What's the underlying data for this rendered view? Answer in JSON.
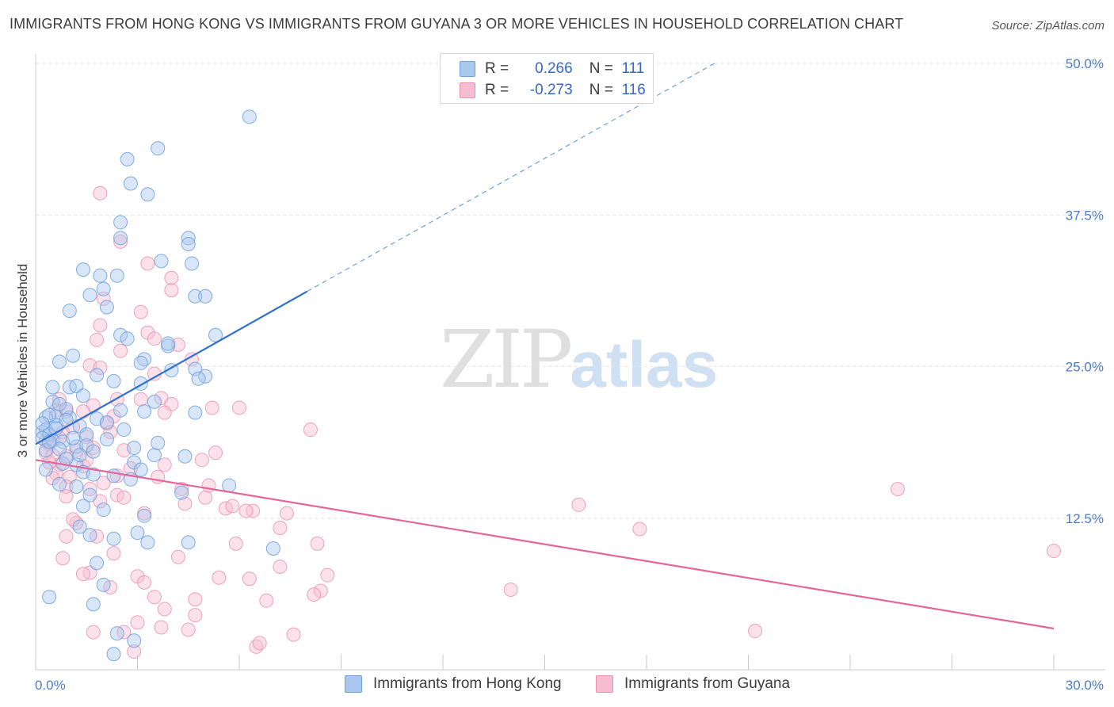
{
  "header": {
    "title": "IMMIGRANTS FROM HONG KONG VS IMMIGRANTS FROM GUYANA 3 OR MORE VEHICLES IN HOUSEHOLD CORRELATION CHART",
    "source": "Source: ZipAtlas.com"
  },
  "watermark": {
    "zip": "ZIP",
    "atlas": "atlas"
  },
  "legend": {
    "hk": {
      "r_label": "R =",
      "r_value": "0.266",
      "n_label": "N =",
      "n_value": "111"
    },
    "gy": {
      "r_label": "R =",
      "r_value": "-0.273",
      "n_label": "N =",
      "n_value": "116"
    }
  },
  "colors": {
    "hk_fill": "#a9c8ee",
    "hk_stroke": "#6d9fdd",
    "hk_line": "#2f6fcf",
    "gy_fill": "#f6bcd0",
    "gy_stroke": "#ea8fae",
    "gy_line": "#e4659a",
    "grid": "#e6e6e6",
    "axis_text": "#4a7cc9"
  },
  "chart_data": {
    "type": "scatter",
    "title": "IMMIGRANTS FROM HONG KONG VS IMMIGRANTS FROM GUYANA 3 OR MORE VEHICLES IN HOUSEHOLD CORRELATION CHART",
    "xlabel": "",
    "ylabel": "3 or more Vehicles in Household",
    "xlim": [
      0,
      30
    ],
    "ylim": [
      0,
      50
    ],
    "x_tick_labels": [
      "0.0%",
      "30.0%"
    ],
    "y_ticks": [
      12.5,
      25.0,
      37.5,
      50.0
    ],
    "y_tick_labels": [
      "12.5%",
      "25.0%",
      "37.5%",
      "50.0%"
    ],
    "grid": true,
    "legend_position": "top-center",
    "series": [
      {
        "name": "Immigrants from Hong Kong",
        "r": 0.266,
        "n": 111,
        "trend": {
          "x0": 0.0,
          "y0": 18.6,
          "x1": 8.0,
          "y1": 31.2,
          "dashed_to_x": 20.0,
          "dashed_to_y": 50.0
        },
        "points": [
          [
            6.3,
            45.6
          ],
          [
            3.6,
            43.0
          ],
          [
            2.7,
            42.1
          ],
          [
            2.8,
            40.1
          ],
          [
            3.3,
            39.2
          ],
          [
            2.5,
            36.9
          ],
          [
            2.5,
            35.6
          ],
          [
            4.5,
            35.6
          ],
          [
            4.5,
            35.1
          ],
          [
            3.7,
            33.7
          ],
          [
            4.6,
            33.5
          ],
          [
            1.4,
            33.0
          ],
          [
            2.4,
            32.5
          ],
          [
            1.9,
            32.5
          ],
          [
            2.0,
            31.4
          ],
          [
            1.6,
            30.9
          ],
          [
            4.7,
            30.8
          ],
          [
            5.0,
            30.8
          ],
          [
            2.1,
            29.9
          ],
          [
            1.0,
            29.6
          ],
          [
            2.5,
            27.6
          ],
          [
            2.7,
            27.3
          ],
          [
            5.3,
            27.6
          ],
          [
            3.9,
            26.7
          ],
          [
            3.9,
            26.9
          ],
          [
            1.1,
            25.9
          ],
          [
            0.7,
            25.4
          ],
          [
            3.2,
            25.6
          ],
          [
            3.1,
            25.3
          ],
          [
            4.0,
            24.7
          ],
          [
            4.7,
            24.8
          ],
          [
            5.0,
            24.2
          ],
          [
            4.8,
            24.0
          ],
          [
            1.8,
            24.3
          ],
          [
            2.3,
            23.8
          ],
          [
            3.1,
            23.6
          ],
          [
            0.5,
            23.3
          ],
          [
            1.0,
            23.3
          ],
          [
            1.2,
            23.4
          ],
          [
            1.4,
            22.6
          ],
          [
            3.5,
            22.1
          ],
          [
            4.7,
            21.2
          ],
          [
            2.5,
            21.4
          ],
          [
            3.2,
            21.3
          ],
          [
            0.6,
            20.9
          ],
          [
            1.0,
            20.8
          ],
          [
            0.3,
            20.8
          ],
          [
            1.8,
            20.7
          ],
          [
            2.1,
            20.4
          ],
          [
            1.3,
            20.1
          ],
          [
            0.6,
            20.2
          ],
          [
            0.3,
            19.8
          ],
          [
            0.2,
            19.6
          ],
          [
            0.4,
            19.4
          ],
          [
            0.2,
            19.1
          ],
          [
            0.5,
            18.9
          ],
          [
            0.8,
            18.8
          ],
          [
            1.2,
            18.4
          ],
          [
            1.5,
            18.5
          ],
          [
            0.3,
            18.1
          ],
          [
            0.7,
            18.2
          ],
          [
            1.7,
            18.0
          ],
          [
            3.5,
            17.7
          ],
          [
            2.9,
            17.1
          ],
          [
            0.8,
            17.0
          ],
          [
            1.2,
            16.9
          ],
          [
            0.3,
            16.5
          ],
          [
            1.4,
            16.3
          ],
          [
            1.7,
            16.1
          ],
          [
            2.3,
            16.0
          ],
          [
            2.8,
            15.7
          ],
          [
            0.7,
            15.3
          ],
          [
            1.2,
            15.1
          ],
          [
            1.6,
            14.4
          ],
          [
            5.7,
            15.2
          ],
          [
            4.3,
            14.6
          ],
          [
            1.4,
            13.5
          ],
          [
            2.0,
            13.2
          ],
          [
            3.2,
            12.7
          ],
          [
            1.3,
            11.8
          ],
          [
            3.0,
            11.3
          ],
          [
            1.6,
            11.1
          ],
          [
            2.3,
            10.8
          ],
          [
            3.3,
            10.5
          ],
          [
            4.5,
            10.5
          ],
          [
            7.0,
            10.0
          ],
          [
            1.8,
            8.8
          ],
          [
            2.0,
            7.0
          ],
          [
            0.4,
            6.0
          ],
          [
            1.7,
            5.4
          ],
          [
            2.4,
            3.0
          ],
          [
            2.9,
            2.4
          ],
          [
            2.3,
            1.3
          ],
          [
            0.5,
            22.1
          ],
          [
            0.9,
            21.5
          ],
          [
            2.9,
            18.3
          ],
          [
            3.6,
            18.7
          ],
          [
            3.1,
            16.5
          ],
          [
            1.5,
            19.4
          ],
          [
            2.1,
            19.0
          ],
          [
            0.4,
            21.0
          ],
          [
            0.9,
            20.6
          ],
          [
            0.6,
            19.9
          ],
          [
            1.1,
            19.1
          ],
          [
            0.2,
            20.3
          ],
          [
            0.7,
            21.9
          ],
          [
            2.6,
            19.8
          ],
          [
            4.4,
            17.6
          ],
          [
            0.9,
            17.4
          ],
          [
            0.4,
            18.8
          ],
          [
            1.3,
            17.7
          ]
        ]
      },
      {
        "name": "Immigrants from Guyana",
        "r": -0.273,
        "n": 116,
        "trend": {
          "x0": 0.0,
          "y0": 17.3,
          "x1": 30.0,
          "y1": 3.4
        },
        "points": [
          [
            1.9,
            39.3
          ],
          [
            2.5,
            35.3
          ],
          [
            3.3,
            33.5
          ],
          [
            4.0,
            32.3
          ],
          [
            4.0,
            31.3
          ],
          [
            2.0,
            30.6
          ],
          [
            3.1,
            29.5
          ],
          [
            1.9,
            28.4
          ],
          [
            3.3,
            27.8
          ],
          [
            3.5,
            27.3
          ],
          [
            1.8,
            27.2
          ],
          [
            4.2,
            26.8
          ],
          [
            2.5,
            26.3
          ],
          [
            4.6,
            25.6
          ],
          [
            1.6,
            25.1
          ],
          [
            3.5,
            24.4
          ],
          [
            1.9,
            24.9
          ],
          [
            3.1,
            22.3
          ],
          [
            3.7,
            22.4
          ],
          [
            0.7,
            22.3
          ],
          [
            1.7,
            21.8
          ],
          [
            2.4,
            22.3
          ],
          [
            4.0,
            21.9
          ],
          [
            6.0,
            21.6
          ],
          [
            5.2,
            21.6
          ],
          [
            0.9,
            21.3
          ],
          [
            1.4,
            21.3
          ],
          [
            2.3,
            20.9
          ],
          [
            3.8,
            21.2
          ],
          [
            2.1,
            20.3
          ],
          [
            8.1,
            19.8
          ],
          [
            2.2,
            19.6
          ],
          [
            0.8,
            19.6
          ],
          [
            1.5,
            19.2
          ],
          [
            0.4,
            18.6
          ],
          [
            1.2,
            18.1
          ],
          [
            1.7,
            18.3
          ],
          [
            0.3,
            17.9
          ],
          [
            0.5,
            17.7
          ],
          [
            0.9,
            17.6
          ],
          [
            4.9,
            17.3
          ],
          [
            2.6,
            18.1
          ],
          [
            3.8,
            16.9
          ],
          [
            5.3,
            17.9
          ],
          [
            0.7,
            16.9
          ],
          [
            0.6,
            16.2
          ],
          [
            1.0,
            15.9
          ],
          [
            2.4,
            16.0
          ],
          [
            0.5,
            15.8
          ],
          [
            0.9,
            15.1
          ],
          [
            1.6,
            14.9
          ],
          [
            2.4,
            14.4
          ],
          [
            0.9,
            14.3
          ],
          [
            2.6,
            14.2
          ],
          [
            5.0,
            14.2
          ],
          [
            4.4,
            13.7
          ],
          [
            6.4,
            13.1
          ],
          [
            5.6,
            13.3
          ],
          [
            5.8,
            13.5
          ],
          [
            7.4,
            12.9
          ],
          [
            6.2,
            13.1
          ],
          [
            16.0,
            13.6
          ],
          [
            25.4,
            14.9
          ],
          [
            3.2,
            12.9
          ],
          [
            1.2,
            12.1
          ],
          [
            1.1,
            12.4
          ],
          [
            7.2,
            11.7
          ],
          [
            17.8,
            11.6
          ],
          [
            0.9,
            11.0
          ],
          [
            1.8,
            11.0
          ],
          [
            5.9,
            10.4
          ],
          [
            8.3,
            10.4
          ],
          [
            0.8,
            9.2
          ],
          [
            2.3,
            9.6
          ],
          [
            4.2,
            9.3
          ],
          [
            7.2,
            8.5
          ],
          [
            1.6,
            8.0
          ],
          [
            1.4,
            7.9
          ],
          [
            3.0,
            7.7
          ],
          [
            5.4,
            7.6
          ],
          [
            6.3,
            7.5
          ],
          [
            8.6,
            7.8
          ],
          [
            3.2,
            7.2
          ],
          [
            2.2,
            6.8
          ],
          [
            14.0,
            6.6
          ],
          [
            8.4,
            6.5
          ],
          [
            8.2,
            6.2
          ],
          [
            3.5,
            6.0
          ],
          [
            4.7,
            5.8
          ],
          [
            6.8,
            5.7
          ],
          [
            30.0,
            9.8
          ],
          [
            3.8,
            5.0
          ],
          [
            4.7,
            4.5
          ],
          [
            3.0,
            3.9
          ],
          [
            3.7,
            3.5
          ],
          [
            4.5,
            3.3
          ],
          [
            1.7,
            3.1
          ],
          [
            2.6,
            3.1
          ],
          [
            7.6,
            2.9
          ],
          [
            21.2,
            3.2
          ],
          [
            6.5,
            1.9
          ],
          [
            6.6,
            2.2
          ],
          [
            2.9,
            1.5
          ],
          [
            0.6,
            21.4
          ],
          [
            1.1,
            20.0
          ],
          [
            0.4,
            17.1
          ],
          [
            1.4,
            16.8
          ],
          [
            2.0,
            15.4
          ],
          [
            3.6,
            15.9
          ],
          [
            4.3,
            14.9
          ],
          [
            1.9,
            13.9
          ],
          [
            5.1,
            15.2
          ],
          [
            0.3,
            18.9
          ],
          [
            1.5,
            17.3
          ],
          [
            2.8,
            16.6
          ],
          [
            0.7,
            19.1
          ]
        ]
      }
    ]
  },
  "bottom_legend": {
    "hk_label": "Immigrants from Hong Kong",
    "gy_label": "Immigrants from Guyana"
  }
}
